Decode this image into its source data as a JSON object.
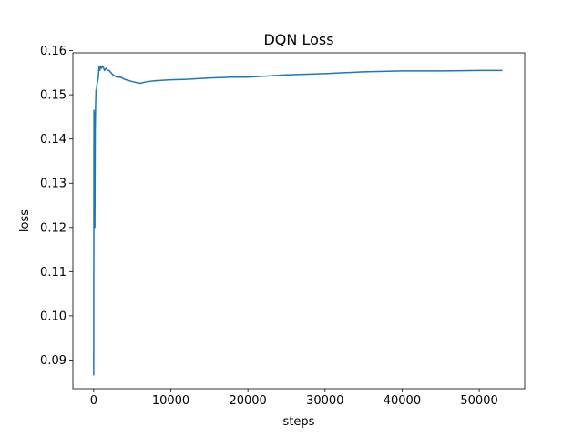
{
  "chart_data": {
    "type": "line",
    "title": "DQN Loss",
    "xlabel": "steps",
    "ylabel": "loss",
    "xlim": [
      -2700,
      55900
    ],
    "ylim": [
      0.0835,
      0.1595
    ],
    "xticks": [
      0,
      10000,
      20000,
      30000,
      40000,
      50000
    ],
    "yticks": [
      0.09,
      0.1,
      0.11,
      0.12,
      0.13,
      0.14,
      0.15,
      0.16
    ],
    "ytick_labels": [
      "0.09",
      "0.10",
      "0.11",
      "0.12",
      "0.13",
      "0.14",
      "0.15",
      "0.16"
    ],
    "grid": false,
    "series": [
      {
        "color": "#1f77b4",
        "x": [
          0,
          30,
          60,
          100,
          150,
          200,
          250,
          300,
          350,
          400,
          500,
          600,
          700,
          800,
          900,
          1000,
          1200,
          1400,
          1600,
          1800,
          2000,
          2500,
          3000,
          3500,
          4000,
          5000,
          6000,
          7000,
          8000,
          9000,
          10000,
          12000,
          15000,
          18000,
          20000,
          25000,
          30000,
          35000,
          40000,
          45000,
          50000,
          53000
        ],
        "y": [
          0.0865,
          0.1465,
          0.141,
          0.146,
          0.12,
          0.142,
          0.148,
          0.151,
          0.1505,
          0.152,
          0.153,
          0.154,
          0.1565,
          0.1555,
          0.1565,
          0.156,
          0.1565,
          0.1555,
          0.156,
          0.1555,
          0.1555,
          0.1545,
          0.154,
          0.154,
          0.1535,
          0.153,
          0.1526,
          0.153,
          0.1532,
          0.1533,
          0.1534,
          0.1535,
          0.1538,
          0.154,
          0.154,
          0.1545,
          0.1548,
          0.1552,
          0.1554,
          0.1554,
          0.1555,
          0.1555
        ]
      }
    ]
  }
}
